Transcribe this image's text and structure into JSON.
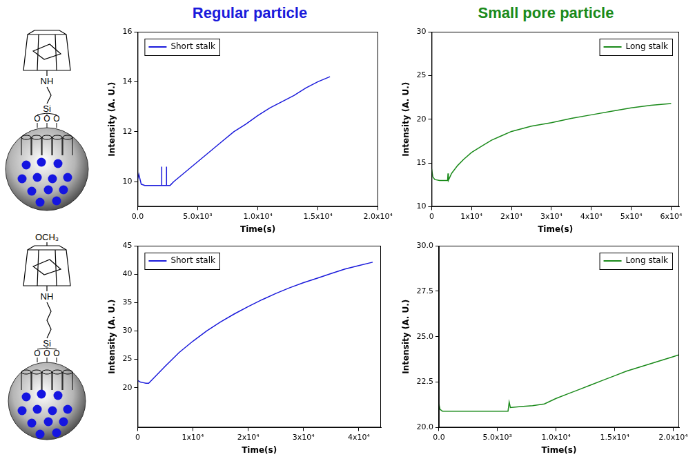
{
  "column_titles": [
    {
      "text": "Regular particle",
      "color": "#1a1adb"
    },
    {
      "text": "Small pore particle",
      "color": "#1a8a1a"
    }
  ],
  "structures": [
    {
      "amine": "NH",
      "silicon": "Si",
      "oxygens": [
        "O",
        "O",
        "O"
      ]
    },
    {
      "terminal": "OCH₃",
      "amine": "NH",
      "silicon": "Si",
      "oxygens": [
        "O",
        "O",
        "O"
      ]
    }
  ],
  "chart_data": [
    {
      "type": "line",
      "x_label": "Time(s)",
      "y_label": "Intensity (A. U.)",
      "legend": "upper left",
      "grid": false,
      "marker": "none",
      "x": [
        0,
        100,
        300,
        600,
        1000,
        1500,
        1990,
        2000,
        2010,
        2300,
        2390,
        2400,
        2410,
        2700,
        3000,
        4000,
        5000,
        6000,
        7000,
        8000,
        9000,
        10000,
        11000,
        12000,
        13000,
        14000,
        15000,
        16000
      ],
      "series": [
        {
          "name": "Short stalk",
          "color": "#1a1adb",
          "values": [
            10.1,
            10.3,
            9.9,
            9.85,
            9.85,
            9.85,
            9.85,
            10.6,
            9.85,
            9.85,
            9.85,
            10.6,
            9.85,
            9.85,
            10.0,
            10.4,
            10.8,
            11.2,
            11.6,
            12.0,
            12.3,
            12.65,
            12.95,
            13.2,
            13.45,
            13.75,
            14.0,
            14.2
          ]
        }
      ],
      "xlim": [
        0,
        20000
      ],
      "xticks": [
        {
          "value": 0,
          "label": "0.0"
        },
        {
          "value": 5000,
          "label": "5.0x10³"
        },
        {
          "value": 10000,
          "label": "1.0x10⁴"
        },
        {
          "value": 15000,
          "label": "1.5x10⁴"
        },
        {
          "value": 20000,
          "label": "2.0x10⁴"
        }
      ],
      "ylim": [
        9,
        16
      ],
      "yticks": [
        10,
        12,
        14,
        16
      ]
    },
    {
      "type": "line",
      "x_label": "Time(s)",
      "y_label": "Intensity (A. U.)",
      "legend": "upper right",
      "grid": false,
      "marker": "none",
      "x": [
        0,
        300,
        800,
        2000,
        3000,
        4000,
        4100,
        4200,
        5000,
        6500,
        8000,
        10000,
        12500,
        15000,
        17500,
        20000,
        25000,
        30000,
        35000,
        40000,
        45000,
        50000,
        55000,
        60000
      ],
      "series": [
        {
          "name": "Long stalk",
          "color": "#1a8a1a",
          "values": [
            14.3,
            13.4,
            13.1,
            13.0,
            13.0,
            13.0,
            13.8,
            13.0,
            13.8,
            14.7,
            15.4,
            16.2,
            16.9,
            17.6,
            18.1,
            18.6,
            19.2,
            19.6,
            20.1,
            20.5,
            20.9,
            21.3,
            21.6,
            21.8
          ]
        }
      ],
      "xlim": [
        0,
        62000
      ],
      "xticks": [
        0,
        {
          "value": 10000,
          "label": "1x10⁴"
        },
        {
          "value": 20000,
          "label": "2x10⁴"
        },
        {
          "value": 30000,
          "label": "3x10⁴"
        },
        {
          "value": 40000,
          "label": "4x10⁴"
        },
        {
          "value": 50000,
          "label": "5x10⁴"
        },
        {
          "value": 60000,
          "label": "6x10⁴"
        }
      ],
      "ylim": [
        10,
        30
      ],
      "yticks": [
        10,
        15,
        20,
        25,
        30
      ]
    },
    {
      "type": "line",
      "x_label": "Time(s)",
      "y_label": "Intensity (A. U.)",
      "legend": "upper left",
      "grid": false,
      "marker": "none",
      "x": [
        0,
        500,
        1000,
        1500,
        2000,
        3000,
        5000,
        7500,
        10000,
        12500,
        15000,
        17500,
        20000,
        22500,
        25000,
        27500,
        30000,
        32500,
        35000,
        37500,
        40000,
        42500
      ],
      "series": [
        {
          "name": "Short stalk",
          "color": "#1a1adb",
          "values": [
            21.3,
            21.0,
            20.9,
            20.8,
            20.8,
            21.8,
            23.8,
            26.2,
            28.2,
            30.0,
            31.6,
            33.0,
            34.3,
            35.5,
            36.6,
            37.6,
            38.5,
            39.3,
            40.1,
            40.9,
            41.5,
            42.1
          ]
        }
      ],
      "xlim": [
        0,
        44000
      ],
      "xticks": [
        0,
        {
          "value": 10000,
          "label": "1x10⁴"
        },
        {
          "value": 20000,
          "label": "2x10⁴"
        },
        {
          "value": 30000,
          "label": "3x10⁴"
        },
        {
          "value": 40000,
          "label": "4x10⁴"
        }
      ],
      "ylim": [
        13,
        45
      ],
      "yticks": [
        20,
        25,
        30,
        35,
        40,
        45
      ]
    },
    {
      "type": "line",
      "x_label": "Time(s)",
      "y_label": "Intensity (A. U.)",
      "legend": "upper right",
      "grid": false,
      "marker": "none",
      "x": [
        0,
        100,
        300,
        1000,
        2000,
        3000,
        4000,
        5000,
        5900,
        6000,
        6100,
        7000,
        8000,
        9000,
        10000,
        11000,
        12000,
        13000,
        14000,
        15000,
        16000,
        17000,
        18000,
        19000,
        20000,
        20500
      ],
      "series": [
        {
          "name": "Long stalk",
          "color": "#1a8a1a",
          "values": [
            21.3,
            21.0,
            20.9,
            20.9,
            20.9,
            20.9,
            20.9,
            20.9,
            20.9,
            21.4,
            21.1,
            21.15,
            21.2,
            21.3,
            21.6,
            21.85,
            22.1,
            22.35,
            22.6,
            22.85,
            23.1,
            23.3,
            23.5,
            23.7,
            23.9,
            24.0
          ]
        }
      ],
      "xlim": [
        0,
        20500
      ],
      "xticks": [
        {
          "value": 0,
          "label": "0.0"
        },
        {
          "value": 5000,
          "label": "5.0x10³"
        },
        {
          "value": 10000,
          "label": "1.0x10⁴"
        },
        {
          "value": 15000,
          "label": "1.5x10⁴"
        },
        {
          "value": 20000,
          "label": "2.0x10⁴"
        }
      ],
      "ylim": [
        20,
        30
      ],
      "yticks": [
        {
          "value": 20,
          "label": "20.0"
        },
        22.5,
        {
          "value": 25,
          "label": "25.0"
        },
        27.5,
        {
          "value": 30,
          "label": "30.0"
        }
      ]
    }
  ]
}
